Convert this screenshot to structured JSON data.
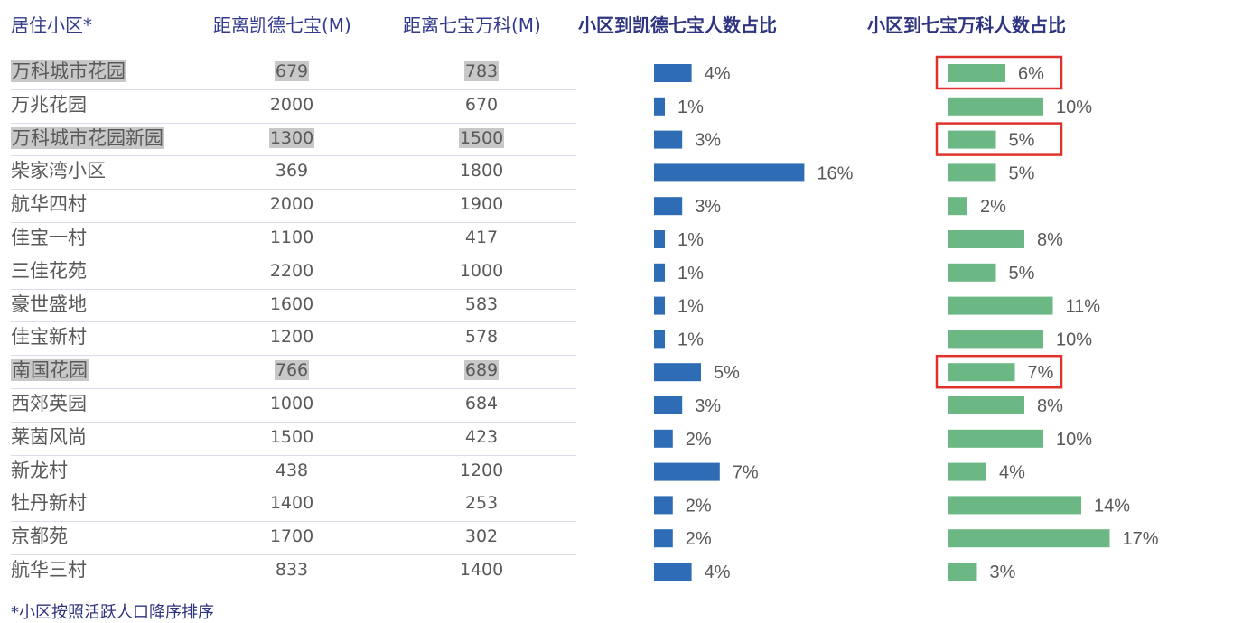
{
  "header": {
    "residence_label": "居住小区*",
    "distance_kaide_label": "距离凯德七宝(M)",
    "distance_vanke_label": "距离七宝万科(M)",
    "share_kaide_label": "小区到凯德七宝人数占比",
    "share_vanke_label": "小区到七宝万科人数占比"
  },
  "footnote": "*小区按照活跃人口降序排序",
  "colors": {
    "kaide_bar": "#2e6db5",
    "vanke_bar": "#6cb885",
    "highlight_box": "#e0322d",
    "highlight_bg": "#c8c8c8",
    "header_text": "#2f3480"
  },
  "rows": [
    {
      "name": "万科城市花园",
      "d_kaide": "679",
      "d_vanke": "783",
      "highlighted": true
    },
    {
      "name": "万兆花园",
      "d_kaide": "2000",
      "d_vanke": "670",
      "highlighted": false
    },
    {
      "name": "万科城市花园新园",
      "d_kaide": "1300",
      "d_vanke": "1500",
      "highlighted": true
    },
    {
      "name": "柴家湾小区",
      "d_kaide": "369",
      "d_vanke": "1800",
      "highlighted": false
    },
    {
      "name": "航华四村",
      "d_kaide": "2000",
      "d_vanke": "1900",
      "highlighted": false
    },
    {
      "name": "佳宝一村",
      "d_kaide": "1100",
      "d_vanke": "417",
      "highlighted": false
    },
    {
      "name": "三佳花苑",
      "d_kaide": "2200",
      "d_vanke": "1000",
      "highlighted": false
    },
    {
      "name": "豪世盛地",
      "d_kaide": "1600",
      "d_vanke": "583",
      "highlighted": false
    },
    {
      "name": "佳宝新村",
      "d_kaide": "1200",
      "d_vanke": "578",
      "highlighted": false
    },
    {
      "name": "南国花园",
      "d_kaide": "766",
      "d_vanke": "689",
      "highlighted": true
    },
    {
      "name": "西郊英园",
      "d_kaide": "1000",
      "d_vanke": "684",
      "highlighted": false
    },
    {
      "name": "莱茵风尚",
      "d_kaide": "1500",
      "d_vanke": "423",
      "highlighted": false
    },
    {
      "name": "新龙村",
      "d_kaide": "438",
      "d_vanke": "1200",
      "highlighted": false
    },
    {
      "name": "牡丹新村",
      "d_kaide": "1400",
      "d_vanke": "253",
      "highlighted": false
    },
    {
      "name": "京都苑",
      "d_kaide": "1700",
      "d_vanke": "302",
      "highlighted": false
    },
    {
      "name": "航华三村",
      "d_kaide": "833",
      "d_vanke": "1400",
      "highlighted": false
    }
  ],
  "chart_data": [
    {
      "type": "bar",
      "title": "小区到凯德七宝人数占比",
      "orientation": "horizontal",
      "categories": [
        "万科城市花园",
        "万兆花园",
        "万科城市花园新园",
        "柴家湾小区",
        "航华四村",
        "佳宝一村",
        "三佳花苑",
        "豪世盛地",
        "佳宝新村",
        "南国花园",
        "西郊英园",
        "莱茵风尚",
        "新龙村",
        "牡丹新村",
        "京都苑",
        "航华三村"
      ],
      "values": [
        4,
        1,
        3,
        16,
        3,
        1,
        1,
        1,
        1,
        5,
        3,
        2,
        7,
        2,
        2,
        4
      ],
      "value_labels": [
        "4%",
        "1%",
        "3%",
        "16%",
        "3%",
        "1%",
        "1%",
        "1%",
        "1%",
        "5%",
        "3%",
        "2%",
        "7%",
        "2%",
        "2%",
        "4%"
      ],
      "xlim": [
        0,
        16
      ],
      "grid": false,
      "color": "#2e6db5"
    },
    {
      "type": "bar",
      "title": "小区到七宝万科人数占比",
      "orientation": "horizontal",
      "categories": [
        "万科城市花园",
        "万兆花园",
        "万科城市花园新园",
        "柴家湾小区",
        "航华四村",
        "佳宝一村",
        "三佳花苑",
        "豪世盛地",
        "佳宝新村",
        "南国花园",
        "西郊英园",
        "莱茵风尚",
        "新龙村",
        "牡丹新村",
        "京都苑",
        "航华三村"
      ],
      "values": [
        6,
        10,
        5,
        5,
        2,
        8,
        5,
        11,
        10,
        7,
        8,
        10,
        4,
        14,
        17,
        3
      ],
      "value_labels": [
        "6%",
        "10%",
        "5%",
        "5%",
        "2%",
        "8%",
        "5%",
        "11%",
        "10%",
        "7%",
        "8%",
        "10%",
        "4%",
        "14%",
        "17%",
        "3%"
      ],
      "xlim": [
        0,
        17
      ],
      "grid": false,
      "color": "#6cb885",
      "boxed_categories": [
        "万科城市花园",
        "万科城市花园新园",
        "南国花园"
      ]
    }
  ]
}
